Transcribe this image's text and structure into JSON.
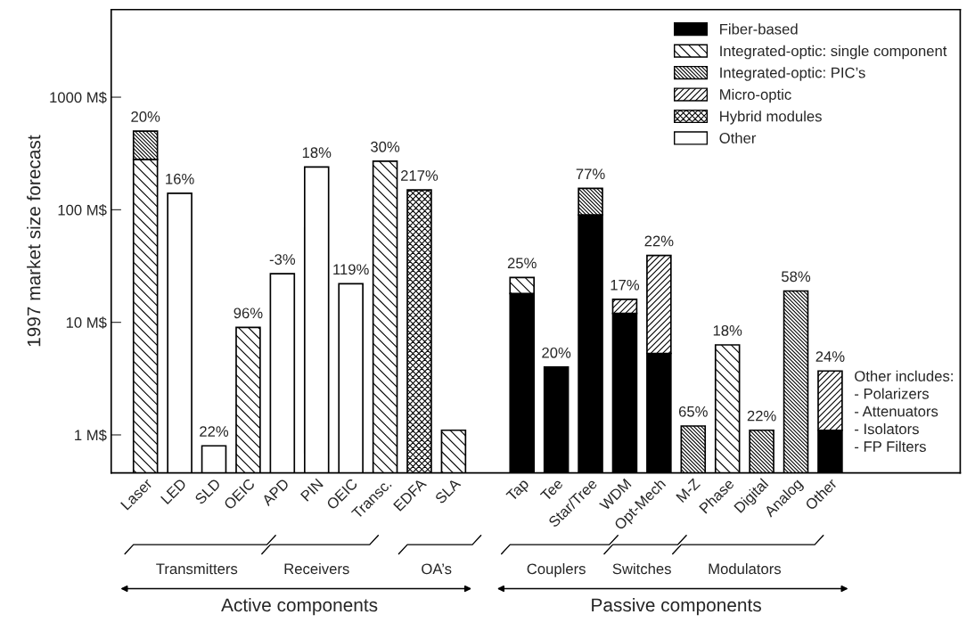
{
  "chart_data": {
    "type": "bar",
    "stacked": true,
    "log": "y",
    "ylabel": "1997 market size forecast",
    "categories": [
      "Laser",
      "LED",
      "SLD",
      "OEIC",
      "APD",
      "PIN",
      "OEIC",
      "Transc.",
      "EDFA",
      "SLA",
      null,
      "Tap",
      "Tee",
      "Star/Tree",
      "WDM",
      "Opt-Mech",
      "M-Z",
      "Phase",
      "Digital",
      "Analog",
      "Other"
    ],
    "series": [
      {
        "name": "Fiber-based",
        "color": "#000000",
        "values": [
          null,
          null,
          null,
          null,
          null,
          null,
          null,
          null,
          null,
          null,
          null,
          18,
          4,
          90,
          12,
          5.3,
          null,
          null,
          null,
          null,
          1.1
        ]
      },
      {
        "name": "Integrated-optic: single component",
        "color": "#000000",
        "values": [
          280,
          null,
          null,
          9,
          null,
          null,
          null,
          270,
          null,
          1.1,
          null,
          7,
          null,
          null,
          null,
          null,
          null,
          6.3,
          null,
          null,
          null
        ]
      },
      {
        "name": "Integrated-optic: PIC’s",
        "color": "#000000",
        "values": [
          220,
          null,
          null,
          null,
          null,
          null,
          null,
          null,
          null,
          null,
          null,
          null,
          null,
          65,
          null,
          null,
          1.2,
          null,
          1.1,
          19,
          null
        ]
      },
      {
        "name": "Micro-optic",
        "color": "#000000",
        "values": [
          null,
          null,
          null,
          null,
          null,
          null,
          null,
          null,
          null,
          null,
          null,
          null,
          null,
          null,
          4,
          34,
          null,
          null,
          null,
          null,
          2.6
        ]
      },
      {
        "name": "Hybrid modules",
        "color": "#000000",
        "values": [
          null,
          null,
          null,
          null,
          null,
          null,
          null,
          null,
          150,
          null,
          null,
          null,
          null,
          null,
          null,
          null,
          null,
          null,
          null,
          null,
          null
        ]
      },
      {
        "name": "Other",
        "color": "#ffffff",
        "values": [
          null,
          140,
          0.8,
          null,
          27,
          240,
          22,
          null,
          null,
          null,
          null,
          null,
          null,
          null,
          null,
          null,
          null,
          null,
          null,
          null,
          null
        ]
      }
    ],
    "value_labels": [
      "20%",
      "16%",
      "22%",
      "96%",
      "-3%",
      "18%",
      "119%",
      "30%",
      "217%",
      null,
      null,
      "25%",
      "20%",
      "77%",
      "17%",
      "22%",
      "65%",
      "18%",
      "22%",
      "58%",
      "24%"
    ],
    "ylim": [
      0.46,
      6000
    ],
    "yticks": [
      {
        "value": 1,
        "label": "1 M$"
      },
      {
        "value": 10,
        "label": "10 M$"
      },
      {
        "value": 100,
        "label": "100 M$"
      },
      {
        "value": 1000,
        "label": "1000 M$"
      }
    ],
    "grid": false,
    "legend": "top right",
    "annotations": [
      "Transmitters",
      "Receivers",
      "OA’s",
      "Couplers",
      "Switches",
      "Modulators",
      "Active components",
      "Passive components",
      "Other includes:\n- Polarizers\n- Attenuators\n- Isolators\n- FP Filters"
    ]
  }
}
